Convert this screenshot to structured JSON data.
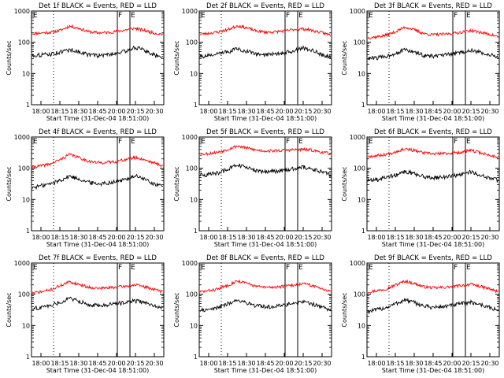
{
  "chart_data": [
    {
      "type": "line",
      "title": "Det 1f BLACK = Events, RED = LLD",
      "seed": 11,
      "events": [
        38,
        40,
        42,
        48,
        58,
        50,
        40,
        38,
        40,
        45,
        52,
        70,
        55,
        40,
        36
      ],
      "lld": [
        190,
        200,
        210,
        240,
        330,
        280,
        220,
        200,
        205,
        220,
        250,
        280,
        240,
        200,
        180
      ]
    },
    {
      "type": "line",
      "title": "Det 2f BLACK = Events, RED = LLD",
      "seed": 23,
      "events": [
        35,
        38,
        42,
        50,
        62,
        52,
        42,
        40,
        42,
        46,
        52,
        66,
        55,
        42,
        34
      ],
      "lld": [
        180,
        195,
        215,
        255,
        340,
        290,
        230,
        210,
        215,
        230,
        255,
        270,
        240,
        205,
        170
      ]
    },
    {
      "type": "line",
      "title": "Det 3f BLACK = Events, RED = LLD",
      "seed": 37,
      "events": [
        30,
        32,
        36,
        45,
        58,
        48,
        38,
        36,
        38,
        42,
        48,
        55,
        48,
        40,
        34
      ],
      "lld": [
        140,
        150,
        170,
        220,
        310,
        250,
        190,
        175,
        180,
        190,
        210,
        240,
        210,
        180,
        150
      ]
    },
    {
      "type": "line",
      "title": "Det 4f BLACK = Events, RED = LLD",
      "seed": 41,
      "events": [
        24,
        28,
        32,
        42,
        56,
        46,
        36,
        32,
        34,
        38,
        44,
        58,
        45,
        32,
        26
      ],
      "lld": [
        110,
        120,
        140,
        190,
        280,
        220,
        170,
        150,
        155,
        165,
        190,
        220,
        190,
        150,
        120
      ]
    },
    {
      "type": "line",
      "title": "Det 5f BLACK = Events, RED = LLD",
      "seed": 53,
      "events": [
        60,
        64,
        72,
        95,
        128,
        105,
        85,
        78,
        80,
        86,
        96,
        112,
        95,
        78,
        62
      ],
      "lld": [
        280,
        300,
        330,
        410,
        520,
        450,
        380,
        360,
        365,
        375,
        390,
        400,
        380,
        330,
        290
      ]
    },
    {
      "type": "line",
      "title": "Det 6f BLACK = Events, RED = LLD",
      "seed": 67,
      "events": [
        40,
        44,
        50,
        62,
        80,
        66,
        54,
        50,
        52,
        56,
        64,
        78,
        62,
        50,
        42
      ],
      "lld": [
        240,
        255,
        280,
        340,
        430,
        370,
        310,
        290,
        295,
        305,
        330,
        370,
        320,
        260,
        230
      ]
    },
    {
      "type": "line",
      "title": "Det 7f BLACK = Events, RED = LLD",
      "seed": 71,
      "events": [
        35,
        38,
        44,
        56,
        74,
        60,
        48,
        44,
        46,
        50,
        56,
        62,
        54,
        44,
        36
      ],
      "lld": [
        110,
        120,
        140,
        190,
        250,
        210,
        170,
        155,
        160,
        170,
        180,
        200,
        175,
        145,
        120
      ]
    },
    {
      "type": "line",
      "title": "Det 8f BLACK = Events, RED = LLD",
      "seed": 83,
      "events": [
        30,
        33,
        38,
        50,
        66,
        54,
        43,
        40,
        42,
        46,
        52,
        58,
        50,
        40,
        32
      ],
      "lld": [
        120,
        130,
        150,
        200,
        270,
        225,
        180,
        165,
        170,
        180,
        195,
        220,
        190,
        155,
        125
      ]
    },
    {
      "type": "line",
      "title": "Det 9f BLACK = Events, RED = LLD",
      "seed": 97,
      "events": [
        28,
        32,
        38,
        50,
        66,
        54,
        42,
        38,
        40,
        44,
        50,
        56,
        48,
        38,
        30
      ],
      "lld": [
        120,
        130,
        150,
        200,
        265,
        220,
        175,
        160,
        165,
        175,
        190,
        210,
        180,
        150,
        120
      ]
    }
  ],
  "shared": {
    "xlabel": "Start Time (31-Dec-04 18:51:00)",
    "ylabel": "Counts/sec",
    "xticks": [
      "18:00",
      "18:15",
      "18:30",
      "18:45",
      "20:00",
      "20:15",
      "20:30"
    ],
    "yticks": [
      "1",
      "10",
      "100",
      "1000"
    ],
    "ylim": [
      1,
      1000
    ],
    "markers": {
      "E_left": "E",
      "F": "F",
      "E_right": "E"
    },
    "colors": {
      "events": "#000000",
      "lld": "#ff0000"
    }
  }
}
